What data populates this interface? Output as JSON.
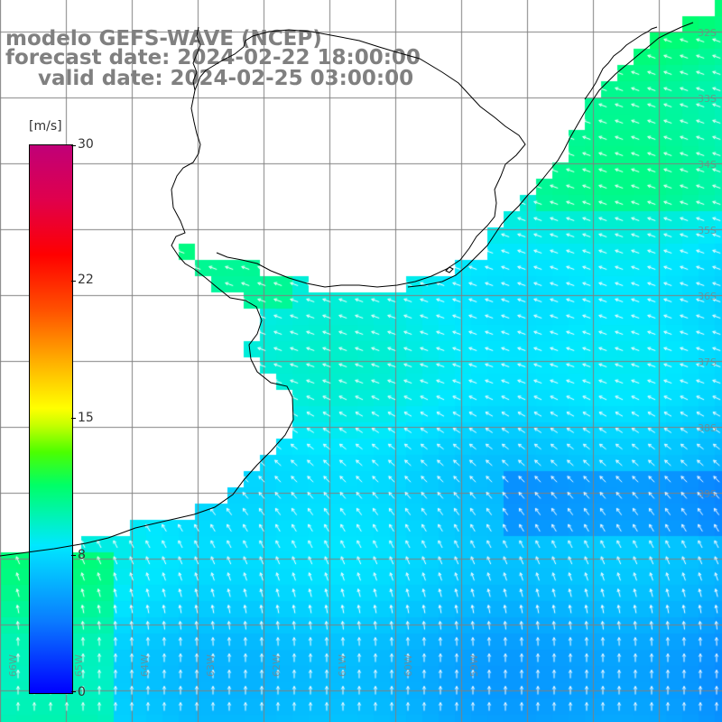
{
  "title": {
    "line1": "modelo GEFS-WAVE (NCEP)",
    "line2": "forecast date: 2024-02-22 18:00:00",
    "line3": "valid date: 2024-02-25 03:00:00"
  },
  "colorbar": {
    "unit": "[m/s]",
    "ticks": [
      "30",
      "22",
      "15",
      "8",
      "0"
    ],
    "tick_values": [
      30,
      22,
      15,
      8,
      0
    ],
    "min": 0,
    "max": 30
  },
  "map": {
    "latitude_labels": [
      "32S",
      "33S",
      "34S",
      "35S",
      "36S",
      "37S",
      "38S",
      "39S"
    ],
    "longitude_labels": [
      "66W",
      "65W",
      "64W",
      "63W",
      "62W",
      "61W",
      "60W",
      "59W"
    ],
    "colors": {
      "land": "#ffffff",
      "coastline": "#000000",
      "grid": "#808080",
      "vectors": "#ffffff",
      "title_text": "#808080"
    },
    "field_description": "wind speed shading with wind direction arrows",
    "wind_direction": "from southeast toward northwest offshore, from south near the southern edge"
  }
}
